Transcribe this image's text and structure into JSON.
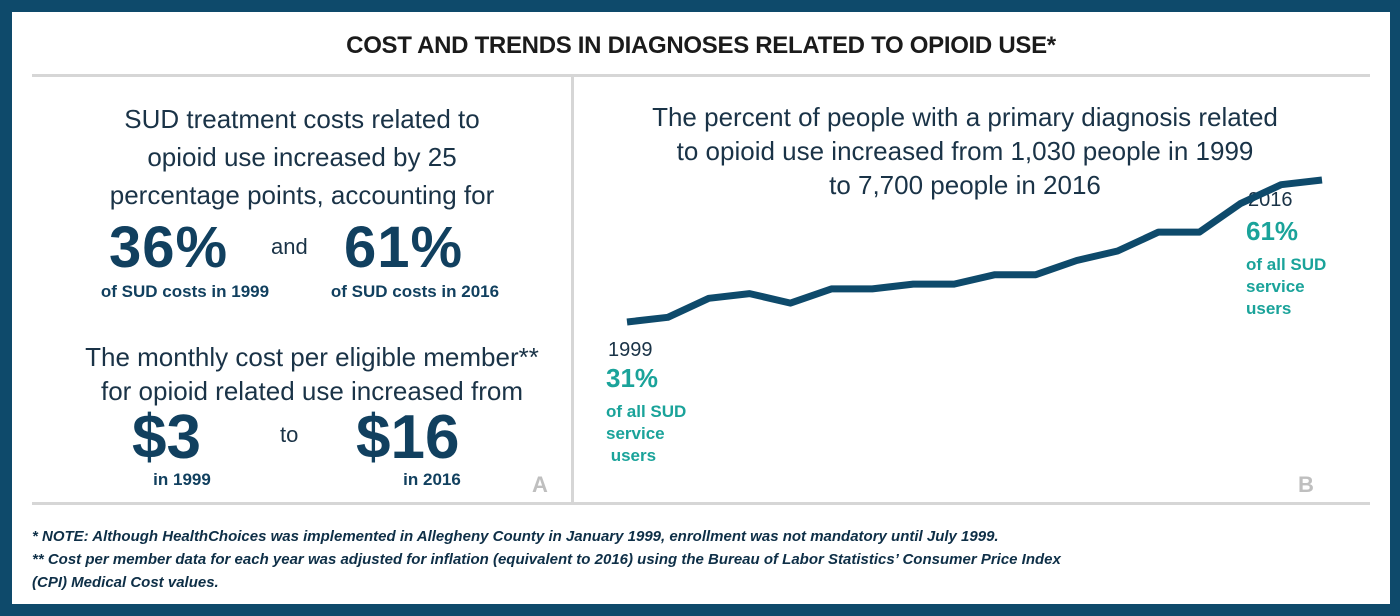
{
  "title": "COST AND TRENDS IN DIAGNOSES RELATED TO OPIOID USE*",
  "panel_a": {
    "intro_lines": [
      "SUD treatment costs related to",
      "opioid use increased by 25",
      "percentage points, accounting for"
    ],
    "pct_1999": "36%",
    "and_word": "and",
    "pct_2016": "61%",
    "label_1999": "of SUD costs in 1999",
    "label_2016": "of SUD costs in 2016",
    "monthly_lines": [
      "The monthly cost per eligible member**",
      "for opioid related use increased from"
    ],
    "cost_1999": "$3",
    "to_word": "to",
    "cost_2016": "$16",
    "cost_label_1999": "in 1999",
    "cost_label_2016": "in 2016",
    "panel_letter": "A"
  },
  "panel_b": {
    "headline_lines": [
      "The percent of people with a primary diagnosis related",
      "to opioid use increased from 1,030 people in 1999",
      "to 7,700 people in 2016"
    ],
    "start_year": "1999",
    "start_pct": "31%",
    "start_desc": [
      "of all SUD",
      "service",
      " users"
    ],
    "end_year": "2016",
    "end_pct": "61%",
    "end_desc": [
      "of all SUD",
      "service",
      "users"
    ],
    "panel_letter": "B"
  },
  "chart_data": {
    "type": "line",
    "title": "",
    "xlabel": "",
    "ylabel": "",
    "x": [
      1999,
      2000,
      2001,
      2002,
      2003,
      2004,
      2005,
      2006,
      2007,
      2008,
      2009,
      2010,
      2011,
      2012,
      2013,
      2014,
      2015,
      2016
    ],
    "series": [
      {
        "values": [
          31,
          32,
          36,
          37,
          35,
          38,
          38,
          39,
          39,
          41,
          41,
          44,
          46,
          50,
          50,
          56,
          60,
          61
        ]
      }
    ],
    "ylim": [
      25,
      65
    ],
    "grid": false,
    "color": "#0e4a6b"
  },
  "footnotes": [
    "* NOTE: Although HealthChoices was implemented in Allegheny County in January 1999, enrollment was not mandatory until July 1999.",
    "** Cost per member data for each year was adjusted for inflation (equivalent to 2016) using the Bureau of Labor Statistics’ Consumer Price Index",
    "(CPI) Medical Cost values."
  ],
  "colors": {
    "navy": "#0e4a6b",
    "teal": "#1aa39a",
    "divider": "#d6d6d6"
  }
}
